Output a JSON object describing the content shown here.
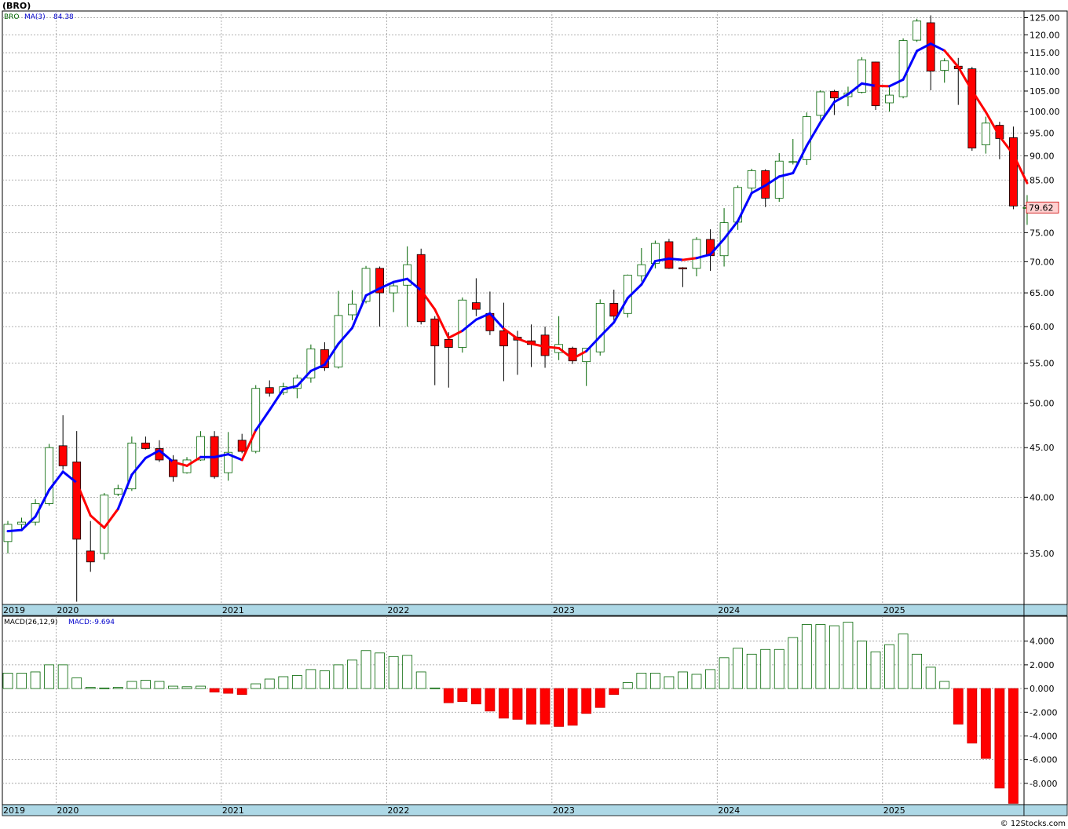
{
  "chart_data": [
    {
      "type": "candlestick",
      "title": "(BRO)",
      "symbol": "BRO",
      "indicator": "MA(3)",
      "indicator_value": "84.38",
      "last_price": "79.62",
      "y_scale": "log",
      "ylim": [
        31,
        127
      ],
      "y_ticks": [
        {
          "v": 125,
          "label": "125.00"
        },
        {
          "v": 120,
          "label": "120.00"
        },
        {
          "v": 115,
          "label": "115.00"
        },
        {
          "v": 110,
          "label": "110.00"
        },
        {
          "v": 105,
          "label": "105.00"
        },
        {
          "v": 100,
          "label": "100.00"
        },
        {
          "v": 95,
          "label": "95.00"
        },
        {
          "v": 90,
          "label": "90.00"
        },
        {
          "v": 85,
          "label": "85.00"
        },
        {
          "v": 80,
          "label": "80.00"
        },
        {
          "v": 75,
          "label": "75.00"
        },
        {
          "v": 70,
          "label": "70.00"
        },
        {
          "v": 65,
          "label": "65.00"
        },
        {
          "v": 60,
          "label": "60.00"
        },
        {
          "v": 55,
          "label": "55.00"
        },
        {
          "v": 50,
          "label": "50.00"
        },
        {
          "v": 45,
          "label": "45.00"
        },
        {
          "v": 40,
          "label": "40.00"
        },
        {
          "v": 35,
          "label": "35.00"
        }
      ],
      "x_labels": [
        {
          "i": 0,
          "label": "2019"
        },
        {
          "i": 3.5,
          "label": "2020"
        },
        {
          "i": 15.5,
          "label": "2021"
        },
        {
          "i": 27.5,
          "label": "2022"
        },
        {
          "i": 39.5,
          "label": "2023"
        },
        {
          "i": 51.5,
          "label": "2024"
        },
        {
          "i": 63.5,
          "label": "2025"
        }
      ],
      "grid": true,
      "candles": [
        [
          36,
          37.8,
          35,
          37.5
        ],
        [
          37.5,
          38.1,
          37,
          37.7
        ],
        [
          37.7,
          39.8,
          37.4,
          39.4
        ],
        [
          39.4,
          45.4,
          39.2,
          45
        ],
        [
          45.2,
          48.6,
          42.7,
          43.1
        ],
        [
          43.5,
          46.8,
          31.2,
          36.2
        ],
        [
          35.2,
          37.8,
          33.5,
          34.3
        ],
        [
          35,
          40.4,
          34.5,
          40.2
        ],
        [
          40.3,
          41.2,
          40.1,
          40.8
        ],
        [
          40.8,
          46.2,
          40.6,
          45.5
        ],
        [
          45.5,
          46.2,
          44.8,
          44.9
        ],
        [
          44.9,
          45.8,
          43.5,
          43.7
        ],
        [
          43.7,
          44.2,
          41.5,
          42
        ],
        [
          42.4,
          44,
          42.3,
          43.7
        ],
        [
          43.7,
          46.8,
          43.6,
          46.2
        ],
        [
          46.2,
          46.8,
          41.8,
          42
        ],
        [
          42.4,
          46.7,
          41.6,
          44.5
        ],
        [
          45.8,
          46.5,
          44.4,
          44.6
        ],
        [
          44.6,
          52.2,
          44.4,
          51.8
        ],
        [
          51.9,
          52.8,
          50.8,
          51.2
        ],
        [
          51.3,
          52.5,
          51,
          52
        ],
        [
          51.8,
          53.5,
          50.6,
          53.1
        ],
        [
          53.1,
          57.5,
          52.5,
          56.9
        ],
        [
          56.8,
          57.8,
          54,
          54.4
        ],
        [
          54.5,
          65.3,
          54.3,
          61.6
        ],
        [
          61.7,
          65.4,
          60.9,
          63.3
        ],
        [
          63.7,
          69.3,
          63.4,
          68.9
        ],
        [
          68.9,
          69.2,
          60,
          65
        ],
        [
          65,
          66.7,
          62.1,
          66.1
        ],
        [
          66.2,
          72.6,
          60,
          69.5
        ],
        [
          71.2,
          72.2,
          60.3,
          60.7
        ],
        [
          61.1,
          61.5,
          52.2,
          57.3
        ],
        [
          58.2,
          59.2,
          51.9,
          57.1
        ],
        [
          57.1,
          64.3,
          56.4,
          63.9
        ],
        [
          63.5,
          67.3,
          61.5,
          62.5
        ],
        [
          61.9,
          65.2,
          58.8,
          59.4
        ],
        [
          59.4,
          63.5,
          52.7,
          57.3
        ],
        [
          58.5,
          59.4,
          53.5,
          58.1
        ],
        [
          58,
          60.3,
          54.5,
          57.5
        ],
        [
          58.8,
          60,
          54.4,
          56
        ],
        [
          56.4,
          61.5,
          55.4,
          57.5
        ],
        [
          57,
          57.2,
          54.9,
          55.3
        ],
        [
          55.2,
          56.7,
          52.1,
          57
        ],
        [
          56.5,
          64,
          56,
          63.4
        ],
        [
          63.4,
          65.5,
          60.9,
          61.5
        ],
        [
          61.9,
          67.9,
          61.3,
          67.8
        ],
        [
          67.7,
          72.3,
          66.8,
          69.5
        ],
        [
          69.7,
          73.6,
          68.9,
          73.1
        ],
        [
          73.4,
          73.9,
          68.8,
          68.9
        ],
        [
          69,
          69.1,
          65.9,
          68.8
        ],
        [
          68.9,
          74.2,
          67.6,
          73.8
        ],
        [
          73.8,
          75.6,
          68.5,
          71
        ],
        [
          71,
          79.5,
          69.2,
          76.8
        ],
        [
          76.9,
          83.9,
          75.5,
          83.5
        ],
        [
          83.4,
          87.3,
          82.2,
          86.9
        ],
        [
          86.9,
          87.2,
          79.7,
          81.4
        ],
        [
          81.4,
          90.6,
          80.7,
          88.9
        ],
        [
          88.8,
          93.7,
          88.2,
          88.8
        ],
        [
          89.2,
          99.8,
          88.1,
          98.8
        ],
        [
          99.1,
          105.2,
          98.1,
          104.8
        ],
        [
          104.9,
          105.3,
          99.2,
          103.3
        ],
        [
          103.6,
          106.1,
          101.3,
          104.5
        ],
        [
          104.7,
          113.8,
          104.4,
          113.1
        ],
        [
          112.5,
          112.6,
          100.4,
          101.4
        ],
        [
          102.1,
          106.3,
          100,
          104
        ],
        [
          103.6,
          119,
          103.2,
          118.4
        ],
        [
          118.5,
          124.7,
          118,
          124
        ],
        [
          123.5,
          125.7,
          105.2,
          110.1
        ],
        [
          110.3,
          113.5,
          107.1,
          112.8
        ],
        [
          111.4,
          113.6,
          101.6,
          110.7
        ],
        [
          110.7,
          111.2,
          91.1,
          91.7
        ],
        [
          92.4,
          98.8,
          90.5,
          97.3
        ],
        [
          96.8,
          97.6,
          89.3,
          93.8
        ],
        [
          94,
          96.5,
          79.3,
          79.9
        ],
        [
          79.5,
          82,
          76.4,
          79.62
        ]
      ],
      "ma3": [
        36.9,
        37.0,
        38.2,
        40.7,
        42.5,
        41.4,
        38.3,
        37.2,
        38.9,
        42.2,
        43.9,
        44.7,
        43.5,
        43.1,
        44.0,
        44.0,
        44.3,
        43.7,
        46.9,
        49.2,
        51.7,
        52.1,
        54.0,
        54.8,
        57.6,
        59.8,
        64.6,
        65.7,
        66.7,
        67.2,
        65.4,
        62.5,
        58.4,
        59.4,
        61.0,
        61.9,
        59.7,
        58.3,
        57.6,
        57.2,
        57.0,
        55.6,
        56.6,
        58.6,
        60.6,
        64.2,
        66.3,
        70.1,
        70.5,
        70.3,
        70.6,
        71.2,
        73.9,
        77.1,
        82.4,
        83.9,
        85.7,
        86.4,
        92.2,
        97.5,
        102.3,
        104.2,
        106.9,
        106.3,
        106.2,
        107.9,
        115.5,
        117.5,
        115.6,
        111.2,
        105.1,
        99.9,
        94.3,
        90.3,
        84.38
      ],
      "ma3_colors": [
        "b",
        "b",
        "b",
        "b",
        "b",
        "r",
        "r",
        "r",
        "b",
        "b",
        "b",
        "b",
        "r",
        "r",
        "b",
        "b",
        "b",
        "r",
        "b",
        "b",
        "b",
        "b",
        "b",
        "b",
        "b",
        "b",
        "b",
        "b",
        "b",
        "b",
        "r",
        "r",
        "r",
        "b",
        "b",
        "b",
        "r",
        "r",
        "r",
        "r",
        "r",
        "r",
        "b",
        "b",
        "b",
        "b",
        "b",
        "b",
        "b",
        "r",
        "b",
        "b",
        "b",
        "b",
        "b",
        "b",
        "b",
        "b",
        "b",
        "b",
        "b",
        "b",
        "b",
        "r",
        "b",
        "b",
        "b",
        "b",
        "r",
        "r",
        "r",
        "r",
        "r",
        "r",
        "r"
      ]
    },
    {
      "type": "bar",
      "title": "MACD(26,12,9)",
      "indicator_value": "MACD:-9.694",
      "ylim": [
        -9.8,
        6.1
      ],
      "y_ticks": [
        {
          "v": 4,
          "label": "4.000"
        },
        {
          "v": 2,
          "label": "2.000"
        },
        {
          "v": 0,
          "label": "0.000"
        },
        {
          "v": -2,
          "label": "-2.000"
        },
        {
          "v": -4,
          "label": "-4.000"
        },
        {
          "v": -6,
          "label": "-6.000"
        },
        {
          "v": -8,
          "label": "-8.000"
        }
      ],
      "x_labels": [
        {
          "i": 0,
          "label": "2019"
        },
        {
          "i": 3.5,
          "label": "2020"
        },
        {
          "i": 15.5,
          "label": "2021"
        },
        {
          "i": 27.5,
          "label": "2022"
        },
        {
          "i": 39.5,
          "label": "2023"
        },
        {
          "i": 51.5,
          "label": "2024"
        },
        {
          "i": 63.5,
          "label": "2025"
        }
      ],
      "values": [
        1.3,
        1.3,
        1.4,
        2.0,
        2.0,
        0.9,
        0.1,
        0.05,
        0.1,
        0.6,
        0.7,
        0.6,
        0.2,
        0.15,
        0.2,
        -0.3,
        -0.4,
        -0.5,
        0.4,
        0.8,
        1.0,
        1.1,
        1.6,
        1.5,
        2.0,
        2.4,
        3.2,
        3.0,
        2.7,
        2.8,
        1.4,
        0.05,
        -1.2,
        -1.1,
        -1.3,
        -1.9,
        -2.5,
        -2.6,
        -3.0,
        -3.0,
        -3.2,
        -3.1,
        -2.1,
        -1.6,
        -0.5,
        0.5,
        1.3,
        1.3,
        1.0,
        1.4,
        1.2,
        1.6,
        2.6,
        3.4,
        2.9,
        3.3,
        3.3,
        4.3,
        5.4,
        5.4,
        5.3,
        5.6,
        4.0,
        3.1,
        3.7,
        4.6,
        2.9,
        1.8,
        0.6,
        -3.0,
        -4.6,
        -5.9,
        -8.4,
        -9.694
      ]
    }
  ],
  "footer": {
    "credit": "© 12Stocks.com"
  }
}
